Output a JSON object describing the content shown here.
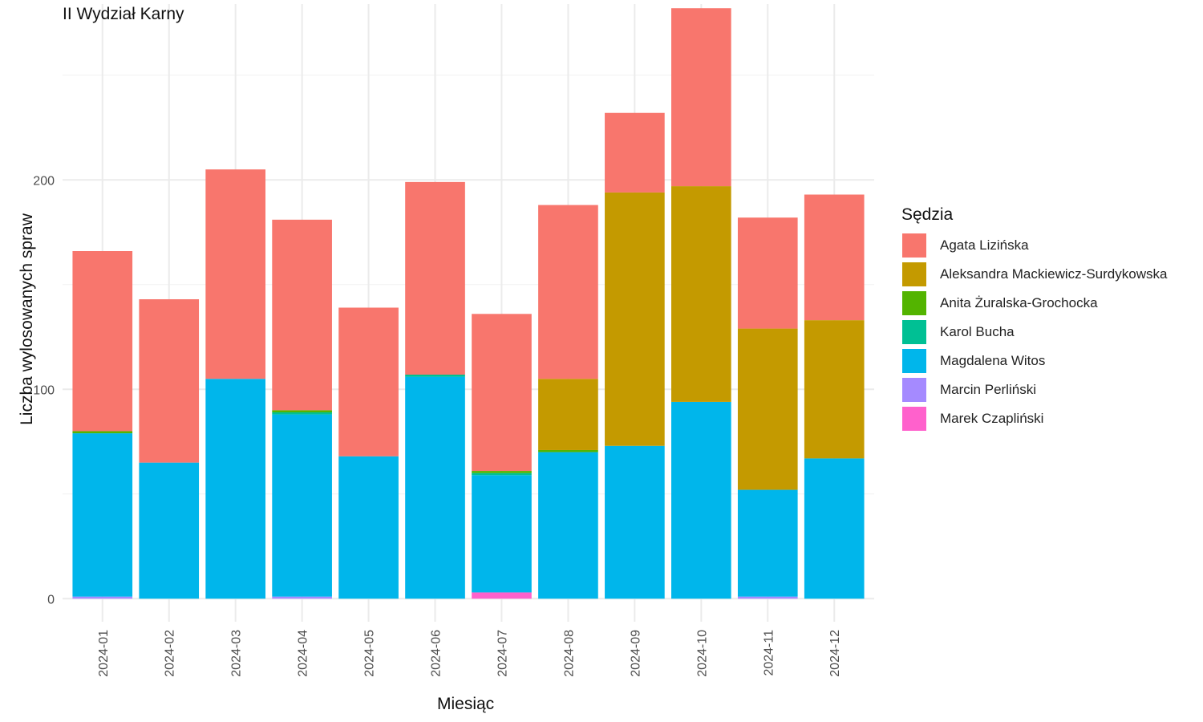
{
  "chart_data": {
    "type": "bar",
    "stacked": true,
    "title": "II Wydział Karny",
    "xlabel": "Miesiąc",
    "ylabel": "Liczba wylosowanych spraw",
    "ylim": [
      -11,
      284
    ],
    "yticks": [
      0,
      100,
      200
    ],
    "grid": true,
    "legend_title": "Sędzia",
    "legend_position": "right",
    "categories": [
      "2024-01",
      "2024-02",
      "2024-03",
      "2024-04",
      "2024-05",
      "2024-06",
      "2024-07",
      "2024-08",
      "2024-09",
      "2024-10",
      "2024-11",
      "2024-12"
    ],
    "series": [
      {
        "name": "Marek Czapliński",
        "color": "#FF61CC",
        "values": [
          0,
          0,
          0,
          0,
          0,
          0,
          3,
          0,
          0,
          0,
          0,
          0
        ]
      },
      {
        "name": "Marcin Perliński",
        "color": "#A58AFF",
        "values": [
          1,
          0,
          0,
          1,
          0,
          0,
          0,
          0,
          0,
          0,
          1,
          0
        ]
      },
      {
        "name": "Magdalena Witos",
        "color": "#00B6EB",
        "values": [
          78,
          65,
          105,
          87,
          68,
          106,
          56,
          70,
          73,
          94,
          51,
          67
        ]
      },
      {
        "name": "Karol Bucha",
        "color": "#00C094",
        "values": [
          0,
          0,
          0,
          1,
          0,
          1,
          1,
          0,
          0,
          0,
          0,
          0
        ]
      },
      {
        "name": "Anita Żuralska-Grochocka",
        "color": "#53B400",
        "values": [
          1,
          0,
          0,
          1,
          0,
          0,
          1,
          1,
          0,
          0,
          0,
          0
        ]
      },
      {
        "name": "Aleksandra Mackiewicz-Surdykowska",
        "color": "#C49A00",
        "values": [
          0,
          0,
          0,
          0,
          0,
          0,
          0,
          34,
          121,
          103,
          77,
          66
        ]
      },
      {
        "name": "Agata Lizińska",
        "color": "#F8766D",
        "values": [
          86,
          78,
          100,
          91,
          71,
          92,
          75,
          83,
          38,
          85,
          53,
          60
        ]
      }
    ]
  }
}
